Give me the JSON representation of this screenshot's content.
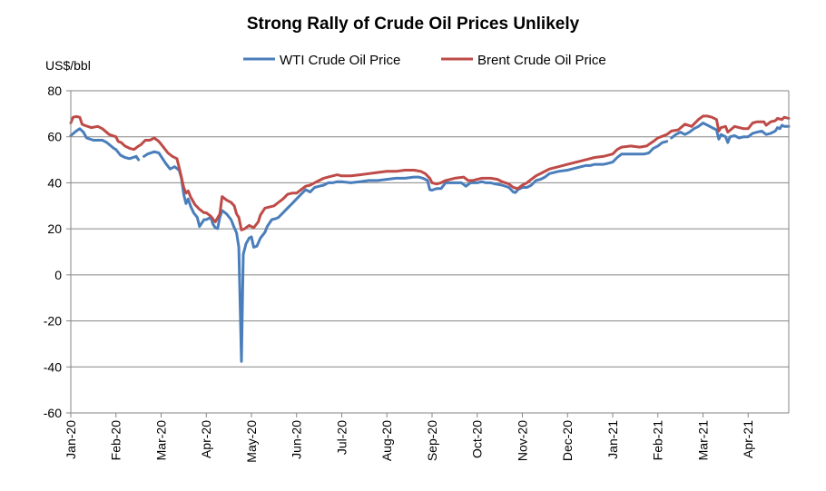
{
  "chart_data": {
    "type": "line",
    "title": "Strong Rally of Crude Oil Prices Unlikely",
    "ylabel": "US$/bbl",
    "xlabel": "",
    "ylim": [
      -60,
      80
    ],
    "yticks": [
      80,
      60,
      40,
      20,
      0,
      -20,
      -40,
      -60
    ],
    "grid": true,
    "legend_position": "top-center",
    "x_range": [
      0,
      15.9
    ],
    "xtick_labels": [
      {
        "label": "Jan-20",
        "pos": 0
      },
      {
        "label": "Feb-20",
        "pos": 1
      },
      {
        "label": "Mar-20",
        "pos": 2
      },
      {
        "label": "Apr-20",
        "pos": 3
      },
      {
        "label": "May-20",
        "pos": 4
      },
      {
        "label": "Jun-20",
        "pos": 5
      },
      {
        "label": "Jul-20",
        "pos": 6
      },
      {
        "label": "Aug-20",
        "pos": 7
      },
      {
        "label": "Sep-20",
        "pos": 8
      },
      {
        "label": "Oct-20",
        "pos": 9
      },
      {
        "label": "Nov-20",
        "pos": 10
      },
      {
        "label": "Dec-20",
        "pos": 11
      },
      {
        "label": "Jan-21",
        "pos": 12
      },
      {
        "label": "Feb-21",
        "pos": 13
      },
      {
        "label": "Mar-21",
        "pos": 14
      },
      {
        "label": "Apr-21",
        "pos": 15
      }
    ],
    "series": [
      {
        "name": "WTI Crude Oil Price",
        "color": "#4a7ebb",
        "points": [
          [
            0.0,
            60.5
          ],
          [
            0.12,
            62.5
          ],
          [
            0.2,
            63.5
          ],
          [
            0.28,
            62
          ],
          [
            0.35,
            59.5
          ],
          [
            0.5,
            58.5
          ],
          [
            0.7,
            58.5
          ],
          [
            0.8,
            57.5
          ],
          [
            0.95,
            55
          ],
          [
            1.0,
            54.5
          ],
          [
            1.1,
            52
          ],
          [
            1.2,
            51
          ],
          [
            1.3,
            50.5
          ],
          [
            1.45,
            51.5
          ],
          [
            1.5,
            50
          ],
          [
            1.55,
            null
          ],
          [
            1.62,
            51.5
          ],
          [
            1.7,
            52.5
          ],
          [
            1.85,
            53.5
          ],
          [
            1.95,
            53
          ],
          [
            2.0,
            51.5
          ],
          [
            2.1,
            48.5
          ],
          [
            2.2,
            46
          ],
          [
            2.3,
            47
          ],
          [
            2.4,
            45.5
          ],
          [
            2.45,
            42
          ],
          [
            2.5,
            35
          ],
          [
            2.55,
            31
          ],
          [
            2.6,
            33
          ],
          [
            2.65,
            30
          ],
          [
            2.72,
            27
          ],
          [
            2.8,
            25
          ],
          [
            2.85,
            21
          ],
          [
            2.9,
            22.5
          ],
          [
            2.95,
            24
          ],
          [
            3.0,
            24
          ],
          [
            3.1,
            25
          ],
          [
            3.15,
            22
          ],
          [
            3.2,
            20.5
          ],
          [
            3.25,
            20.1
          ],
          [
            3.3,
            25
          ],
          [
            3.35,
            28
          ],
          [
            3.45,
            26.5
          ],
          [
            3.55,
            24
          ],
          [
            3.62,
            20.5
          ],
          [
            3.67,
            18.3
          ],
          [
            3.72,
            12
          ],
          [
            3.78,
            -37.6
          ],
          [
            3.82,
            8.9
          ],
          [
            3.88,
            13.5
          ],
          [
            3.95,
            16
          ],
          [
            4.0,
            16.5
          ],
          [
            4.05,
            12
          ],
          [
            4.12,
            12.5
          ],
          [
            4.2,
            16
          ],
          [
            4.3,
            18.5
          ],
          [
            4.35,
            21
          ],
          [
            4.45,
            24
          ],
          [
            4.55,
            24.5
          ],
          [
            4.6,
            25
          ],
          [
            4.7,
            27
          ],
          [
            4.8,
            29
          ],
          [
            4.9,
            31
          ],
          [
            5.0,
            33
          ],
          [
            5.1,
            35
          ],
          [
            5.2,
            37
          ],
          [
            5.3,
            36
          ],
          [
            5.4,
            38
          ],
          [
            5.5,
            38.5
          ],
          [
            5.6,
            39
          ],
          [
            5.7,
            40
          ],
          [
            5.8,
            40
          ],
          [
            5.9,
            40.5
          ],
          [
            6.0,
            40.5
          ],
          [
            6.2,
            40
          ],
          [
            6.4,
            40.5
          ],
          [
            6.6,
            41
          ],
          [
            6.8,
            41
          ],
          [
            7.0,
            41.5
          ],
          [
            7.2,
            42
          ],
          [
            7.4,
            42
          ],
          [
            7.6,
            42.5
          ],
          [
            7.7,
            42.5
          ],
          [
            7.8,
            42
          ],
          [
            7.9,
            41
          ],
          [
            7.95,
            37
          ],
          [
            8.0,
            36.8
          ],
          [
            8.1,
            37.5
          ],
          [
            8.2,
            37.5
          ],
          [
            8.3,
            40
          ],
          [
            8.5,
            40
          ],
          [
            8.65,
            40
          ],
          [
            8.75,
            38.5
          ],
          [
            8.85,
            40
          ],
          [
            9.0,
            40
          ],
          [
            9.1,
            40.5
          ],
          [
            9.2,
            40
          ],
          [
            9.3,
            40
          ],
          [
            9.4,
            39.5
          ],
          [
            9.55,
            39
          ],
          [
            9.7,
            38
          ],
          [
            9.8,
            36
          ],
          [
            9.85,
            35.8
          ],
          [
            9.9,
            37
          ],
          [
            10.0,
            38
          ],
          [
            10.1,
            38
          ],
          [
            10.2,
            39
          ],
          [
            10.3,
            41
          ],
          [
            10.4,
            41.5
          ],
          [
            10.5,
            42.5
          ],
          [
            10.6,
            44
          ],
          [
            10.8,
            45
          ],
          [
            11.0,
            45.5
          ],
          [
            11.2,
            46.5
          ],
          [
            11.4,
            47.5
          ],
          [
            11.5,
            47.5
          ],
          [
            11.6,
            48
          ],
          [
            11.7,
            48
          ],
          [
            11.8,
            48
          ],
          [
            11.9,
            48.5
          ],
          [
            12.0,
            49
          ],
          [
            12.1,
            51
          ],
          [
            12.2,
            52.5
          ],
          [
            12.4,
            52.5
          ],
          [
            12.6,
            52.5
          ],
          [
            12.7,
            52.5
          ],
          [
            12.8,
            53
          ],
          [
            12.9,
            55
          ],
          [
            13.0,
            56
          ],
          [
            13.1,
            57.5
          ],
          [
            13.2,
            58
          ],
          [
            13.25,
            null
          ],
          [
            13.3,
            59.5
          ],
          [
            13.4,
            61
          ],
          [
            13.5,
            62
          ],
          [
            13.6,
            61
          ],
          [
            13.7,
            62
          ],
          [
            13.8,
            63.5
          ],
          [
            13.9,
            64.5
          ],
          [
            14.0,
            66
          ],
          [
            14.1,
            65
          ],
          [
            14.2,
            64
          ],
          [
            14.3,
            63
          ],
          [
            14.35,
            59
          ],
          [
            14.4,
            61
          ],
          [
            14.5,
            60
          ],
          [
            14.55,
            57.5
          ],
          [
            14.6,
            60
          ],
          [
            14.7,
            60.5
          ],
          [
            14.8,
            59.5
          ],
          [
            14.9,
            60
          ],
          [
            15.0,
            60
          ],
          [
            15.1,
            61.5
          ],
          [
            15.2,
            62
          ],
          [
            15.3,
            62.5
          ],
          [
            15.4,
            61
          ],
          [
            15.5,
            61.5
          ],
          [
            15.6,
            62.5
          ],
          [
            15.65,
            64
          ],
          [
            15.7,
            63.5
          ],
          [
            15.75,
            65
          ],
          [
            15.8,
            64.5
          ],
          [
            15.9,
            64.5
          ]
        ]
      },
      {
        "name": "Brent Crude Oil Price",
        "color": "#be4b48",
        "points": [
          [
            0.0,
            66
          ],
          [
            0.05,
            68.5
          ],
          [
            0.12,
            68.8
          ],
          [
            0.2,
            68.5
          ],
          [
            0.25,
            65.5
          ],
          [
            0.3,
            65
          ],
          [
            0.45,
            64
          ],
          [
            0.6,
            64.5
          ],
          [
            0.7,
            63.5
          ],
          [
            0.85,
            61
          ],
          [
            1.0,
            60
          ],
          [
            1.05,
            58
          ],
          [
            1.12,
            57.5
          ],
          [
            1.2,
            56
          ],
          [
            1.3,
            55
          ],
          [
            1.4,
            54.5
          ],
          [
            1.5,
            56
          ],
          [
            1.55,
            56.5
          ],
          [
            1.65,
            58.5
          ],
          [
            1.75,
            58.5
          ],
          [
            1.85,
            59.5
          ],
          [
            1.95,
            58
          ],
          [
            2.05,
            55.5
          ],
          [
            2.15,
            53
          ],
          [
            2.25,
            51.5
          ],
          [
            2.35,
            50.5
          ],
          [
            2.42,
            45
          ],
          [
            2.5,
            38
          ],
          [
            2.55,
            35.5
          ],
          [
            2.6,
            36.5
          ],
          [
            2.65,
            34
          ],
          [
            2.75,
            30.5
          ],
          [
            2.85,
            28.5
          ],
          [
            2.95,
            27
          ],
          [
            3.0,
            27
          ],
          [
            3.1,
            25.5
          ],
          [
            3.2,
            23
          ],
          [
            3.3,
            26.5
          ],
          [
            3.35,
            34
          ],
          [
            3.45,
            32.5
          ],
          [
            3.55,
            31.5
          ],
          [
            3.62,
            30
          ],
          [
            3.67,
            26.5
          ],
          [
            3.72,
            25
          ],
          [
            3.78,
            19.5
          ],
          [
            3.85,
            20
          ],
          [
            3.95,
            21.5
          ],
          [
            4.05,
            20.5
          ],
          [
            4.15,
            23
          ],
          [
            4.2,
            26
          ],
          [
            4.3,
            29
          ],
          [
            4.4,
            29.5
          ],
          [
            4.5,
            30
          ],
          [
            4.6,
            31.5
          ],
          [
            4.7,
            33
          ],
          [
            4.8,
            35
          ],
          [
            4.9,
            35.5
          ],
          [
            5.0,
            35.5
          ],
          [
            5.1,
            37
          ],
          [
            5.2,
            38.5
          ],
          [
            5.3,
            39
          ],
          [
            5.4,
            40
          ],
          [
            5.5,
            41
          ],
          [
            5.6,
            42
          ],
          [
            5.7,
            42.5
          ],
          [
            5.8,
            43
          ],
          [
            5.9,
            43.5
          ],
          [
            6.0,
            43
          ],
          [
            6.2,
            43
          ],
          [
            6.4,
            43.5
          ],
          [
            6.6,
            44
          ],
          [
            6.8,
            44.5
          ],
          [
            7.0,
            45
          ],
          [
            7.2,
            45
          ],
          [
            7.4,
            45.5
          ],
          [
            7.6,
            45.5
          ],
          [
            7.75,
            45
          ],
          [
            7.85,
            44
          ],
          [
            7.95,
            42
          ],
          [
            8.0,
            40
          ],
          [
            8.1,
            39.5
          ],
          [
            8.2,
            40
          ],
          [
            8.3,
            41
          ],
          [
            8.5,
            42
          ],
          [
            8.7,
            42.5
          ],
          [
            8.8,
            41
          ],
          [
            8.9,
            41
          ],
          [
            9.0,
            41.5
          ],
          [
            9.1,
            42
          ],
          [
            9.2,
            42
          ],
          [
            9.3,
            42
          ],
          [
            9.45,
            41.5
          ],
          [
            9.55,
            40.5
          ],
          [
            9.7,
            39.5
          ],
          [
            9.8,
            38
          ],
          [
            9.9,
            37.5
          ],
          [
            10.0,
            39
          ],
          [
            10.1,
            40
          ],
          [
            10.2,
            41.5
          ],
          [
            10.3,
            43
          ],
          [
            10.45,
            44.5
          ],
          [
            10.6,
            46
          ],
          [
            10.8,
            47
          ],
          [
            11.0,
            48
          ],
          [
            11.2,
            49
          ],
          [
            11.4,
            50
          ],
          [
            11.6,
            51
          ],
          [
            11.8,
            51.5
          ],
          [
            12.0,
            52.5
          ],
          [
            12.1,
            54.5
          ],
          [
            12.2,
            55.5
          ],
          [
            12.4,
            56
          ],
          [
            12.6,
            55.5
          ],
          [
            12.75,
            56
          ],
          [
            12.9,
            58
          ],
          [
            13.0,
            59.5
          ],
          [
            13.2,
            61
          ],
          [
            13.3,
            62.5
          ],
          [
            13.45,
            63
          ],
          [
            13.6,
            65.5
          ],
          [
            13.75,
            64.5
          ],
          [
            13.9,
            67.5
          ],
          [
            14.0,
            69
          ],
          [
            14.1,
            69
          ],
          [
            14.2,
            68.5
          ],
          [
            14.3,
            67.5
          ],
          [
            14.35,
            62.5
          ],
          [
            14.4,
            64
          ],
          [
            14.5,
            64.5
          ],
          [
            14.55,
            62
          ],
          [
            14.7,
            64.5
          ],
          [
            14.8,
            64
          ],
          [
            14.9,
            63.5
          ],
          [
            15.0,
            63.5
          ],
          [
            15.1,
            66
          ],
          [
            15.2,
            66.5
          ],
          [
            15.35,
            66.5
          ],
          [
            15.4,
            65
          ],
          [
            15.5,
            66.5
          ],
          [
            15.6,
            67
          ],
          [
            15.65,
            68
          ],
          [
            15.75,
            67.5
          ],
          [
            15.8,
            68.5
          ],
          [
            15.9,
            68
          ]
        ]
      }
    ]
  }
}
